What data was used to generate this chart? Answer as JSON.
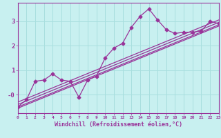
{
  "title": "",
  "xlabel": "Windchill (Refroidissement éolien,°C)",
  "bg_color": "#c8f0f0",
  "grid_color": "#a8dede",
  "line_color": "#993399",
  "xmin": 0,
  "xmax": 23,
  "ymin": -0.75,
  "ymax": 3.75,
  "yticks": [
    0,
    1,
    2,
    3
  ],
  "ytick_labels": [
    "-0",
    "1",
    "2",
    "3"
  ],
  "xticks": [
    0,
    1,
    2,
    3,
    4,
    5,
    6,
    7,
    8,
    9,
    10,
    11,
    12,
    13,
    14,
    15,
    16,
    17,
    18,
    19,
    20,
    21,
    22,
    23
  ],
  "data_x": [
    0,
    1,
    2,
    3,
    4,
    5,
    6,
    7,
    8,
    9,
    10,
    11,
    12,
    13,
    14,
    15,
    16,
    17,
    18,
    19,
    20,
    21,
    22,
    23
  ],
  "data_y": [
    -0.5,
    -0.2,
    0.55,
    0.6,
    0.85,
    0.6,
    0.55,
    -0.1,
    0.6,
    0.75,
    1.5,
    1.9,
    2.1,
    2.75,
    3.2,
    3.5,
    3.05,
    2.65,
    2.5,
    2.55,
    2.55,
    2.6,
    3.0,
    2.9
  ],
  "reg_lines": [
    {
      "x": [
        0,
        23
      ],
      "y": [
        -0.5,
        2.85
      ]
    },
    {
      "x": [
        0,
        23
      ],
      "y": [
        -0.4,
        2.95
      ]
    },
    {
      "x": [
        0,
        23
      ],
      "y": [
        -0.3,
        3.05
      ]
    },
    {
      "x": [
        0,
        23
      ],
      "y": [
        -0.55,
        2.8
      ]
    }
  ],
  "marker": "D",
  "marker_size": 2.5,
  "linewidth": 0.9
}
